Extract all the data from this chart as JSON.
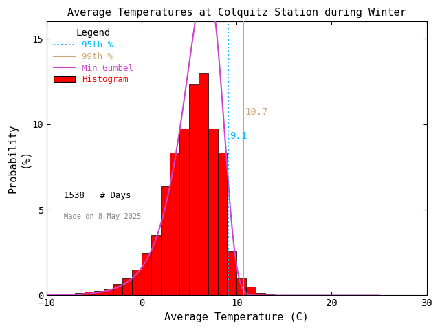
{
  "title": "Average Temperatures at Colquitz Station during Winter",
  "xlabel": "Average Temperature (C)",
  "ylabel": "Probability\n(%)",
  "xlim": [
    -10,
    30
  ],
  "ylim": [
    0,
    16
  ],
  "yticks": [
    0,
    5,
    10,
    15
  ],
  "xticks": [
    -10,
    0,
    10,
    20,
    30
  ],
  "bar_left_edges": [
    -9,
    -8,
    -7,
    -6,
    -5,
    -4,
    -3,
    -2,
    -1,
    0,
    1,
    2,
    3,
    4,
    5,
    6,
    7,
    8,
    9,
    10,
    11,
    12,
    13
  ],
  "bar_heights": [
    0.07,
    0.07,
    0.13,
    0.2,
    0.26,
    0.33,
    0.65,
    0.98,
    1.5,
    2.47,
    3.51,
    6.37,
    8.32,
    9.75,
    12.35,
    13.0,
    9.75,
    8.32,
    2.6,
    0.98,
    0.52,
    0.13,
    0.07
  ],
  "bar_color": "#ff0000",
  "bar_edge_color": "#000000",
  "percentile_95": 9.1,
  "percentile_99": 10.7,
  "percentile_95_color": "#00bfff",
  "percentile_99_color": "#d2a679",
  "gumbel_color": "#cc44cc",
  "gumbel_mu": 6.8,
  "gumbel_beta": 2.0,
  "n_days": 1538,
  "legend_title": "Legend",
  "made_on_text": "Made on 8 May 2025",
  "annotation_95": "9.1",
  "annotation_99": "10.7",
  "annotation_95_color": "#00bfff",
  "annotation_99_color": "#d2a679",
  "bg_color": "#ffffff"
}
